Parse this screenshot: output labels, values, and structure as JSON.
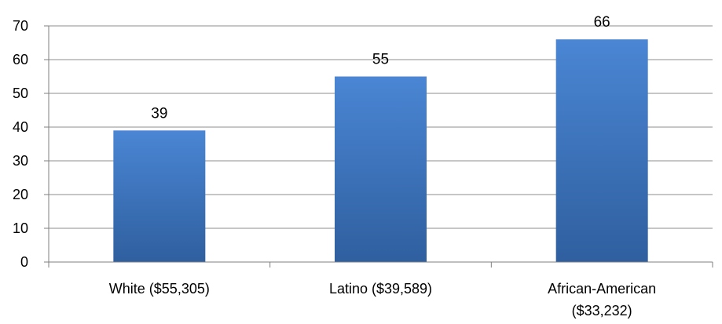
{
  "chart_data": {
    "type": "bar",
    "title": "",
    "xlabel": "",
    "ylabel": "",
    "categories": [
      [
        "White ($55,305)"
      ],
      [
        "Latino ($39,589)"
      ],
      [
        "African-American",
        "($33,232)"
      ]
    ],
    "values": [
      39,
      55,
      66
    ],
    "data_labels": [
      "39",
      "55",
      "66"
    ],
    "ylim": [
      0,
      70
    ],
    "y_ticks": [
      "0",
      "10",
      "20",
      "30",
      "40",
      "50",
      "60",
      "70"
    ],
    "grid": true,
    "legend": "none",
    "bar_color_top": "#4a86d4",
    "bar_color_bottom": "#2f5f9f",
    "gridline_color": "#8c8c8c",
    "axis_color": "#7f7f7f"
  }
}
